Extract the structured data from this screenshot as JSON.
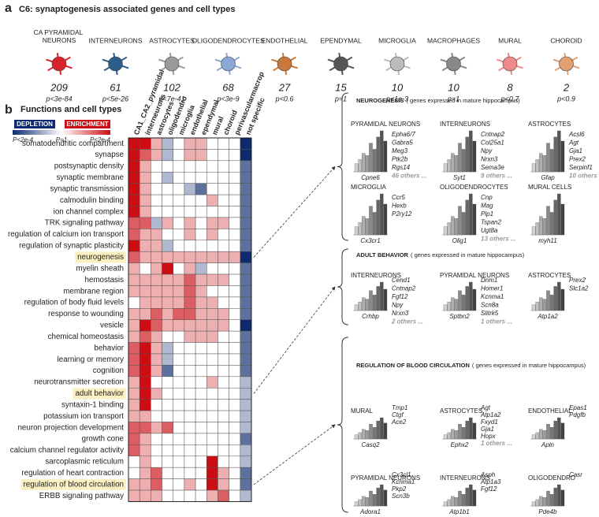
{
  "panel_a": {
    "label": "a",
    "title": "C6: synaptogenesis associated genes and cell types",
    "cell_types": [
      {
        "name": "CA PYRAMIDAL NEURONS",
        "count": 209,
        "p": "p<3e-84",
        "color": "#d9232b"
      },
      {
        "name": "INTERNEURONS",
        "count": 61,
        "p": "p<5e-26",
        "color": "#2b5c8a"
      },
      {
        "name": "ASTROCYTES",
        "count": 102,
        "p": "p<7e-41",
        "color": "#9a9a9a"
      },
      {
        "name": "OLIGODENDROCYTES",
        "count": 68,
        "p": "p<3e-9",
        "color": "#8aa7d6"
      },
      {
        "name": "ENDOTHELIAL",
        "count": 27,
        "p": "p<0.6",
        "color": "#c8783a"
      },
      {
        "name": "EPENDYMAL",
        "count": 15,
        "p": "p=1",
        "color": "#555555"
      },
      {
        "name": "MICROGLIA",
        "count": 10,
        "p": "p<1e-3",
        "color": "#bbbbbb"
      },
      {
        "name": "MACROPHAGES",
        "count": 10,
        "p": "p=1",
        "color": "#888888"
      },
      {
        "name": "MURAL",
        "count": 8,
        "p": "p<0.7",
        "color": "#f08a8a"
      },
      {
        "name": "CHOROID",
        "count": 2,
        "p": "p<0.9",
        "color": "#e0a070"
      }
    ]
  },
  "panel_b": {
    "label": "b",
    "title": "Functions and cell types",
    "legend": {
      "depletion": "DEPLETION",
      "enrichment": "ENRICHMENT",
      "left": "P<2e-4",
      "middle": "P=1",
      "right": "P<2e-4"
    },
    "low_color": "#0d2a6e",
    "mid_color": "#ffffff",
    "high_color": "#cc0e14",
    "scale_range": [
      -3,
      3
    ],
    "columns": [
      "CA1_CA2_pyramidal",
      "interneurons",
      "astrocytes",
      "oligodendro",
      "microglia",
      "endothelial",
      "ependymal",
      "mural",
      "choroid",
      "perivascularmacrop",
      "not specific"
    ],
    "rows": [
      {
        "label": "somatodendritic compartment",
        "scores": [
          3,
          3,
          1,
          -1,
          0,
          1,
          1,
          0,
          0,
          0,
          -3
        ]
      },
      {
        "label": "synapse",
        "scores": [
          3,
          2,
          1,
          -1,
          0,
          1,
          1,
          0,
          0,
          0,
          -3
        ]
      },
      {
        "label": "postsynaptic density",
        "scores": [
          3,
          1,
          0,
          0,
          0,
          0,
          0,
          0,
          0,
          0,
          -2
        ]
      },
      {
        "label": "synaptic membrane",
        "scores": [
          3,
          1,
          0,
          -1,
          0,
          0,
          0,
          0,
          0,
          0,
          -2
        ]
      },
      {
        "label": "synaptic transmission",
        "scores": [
          3,
          1,
          0,
          0,
          0,
          -1,
          -2,
          0,
          0,
          0,
          -2
        ]
      },
      {
        "label": "calmodulin binding",
        "scores": [
          3,
          1,
          0,
          0,
          0,
          0,
          0,
          1,
          0,
          0,
          -2
        ]
      },
      {
        "label": "ion channel complex",
        "scores": [
          3,
          1,
          0,
          0,
          0,
          0,
          0,
          0,
          0,
          0,
          -2
        ]
      },
      {
        "label": "TRK signaling pathway",
        "scores": [
          2,
          2,
          -1,
          1,
          0,
          1,
          0,
          1,
          1,
          0,
          -2
        ]
      },
      {
        "label": "regulation of calcium ion transport",
        "scores": [
          2,
          1,
          1,
          0,
          0,
          1,
          0,
          1,
          0,
          0,
          -2
        ]
      },
      {
        "label": "regulation of synaptic plasticity",
        "scores": [
          3,
          1,
          1,
          -1,
          0,
          0,
          0,
          0,
          0,
          0,
          -2
        ]
      },
      {
        "label": "neurogenesis",
        "scores": [
          2,
          1,
          1,
          1,
          1,
          1,
          1,
          1,
          1,
          1,
          -3
        ],
        "highlight": true
      },
      {
        "label": "myelin sheath",
        "scores": [
          1,
          0,
          1,
          3,
          0,
          1,
          -1,
          0,
          0,
          0,
          -2
        ]
      },
      {
        "label": "hemostasis",
        "scores": [
          1,
          1,
          1,
          1,
          1,
          2,
          1,
          1,
          1,
          0,
          -2
        ]
      },
      {
        "label": "membrane region",
        "scores": [
          1,
          1,
          1,
          1,
          1,
          2,
          1,
          0,
          0,
          0,
          -2
        ]
      },
      {
        "label": "regulation of body fluid levels",
        "scores": [
          0,
          1,
          1,
          1,
          1,
          2,
          1,
          1,
          0,
          0,
          -2
        ]
      },
      {
        "label": "response to wounding",
        "scores": [
          1,
          1,
          2,
          1,
          2,
          2,
          1,
          1,
          1,
          0,
          -2
        ]
      },
      {
        "label": "vesicle",
        "scores": [
          1,
          3,
          2,
          1,
          1,
          1,
          1,
          1,
          1,
          0,
          -3
        ]
      },
      {
        "label": "chemical homeostasis",
        "scores": [
          1,
          2,
          1,
          0,
          0,
          1,
          1,
          1,
          0,
          0,
          -2
        ]
      },
      {
        "label": "behavior",
        "scores": [
          2,
          3,
          1,
          -1,
          0,
          0,
          0,
          0,
          0,
          0,
          -2
        ]
      },
      {
        "label": "learning or memory",
        "scores": [
          2,
          3,
          1,
          -1,
          0,
          0,
          0,
          0,
          0,
          0,
          -2
        ]
      },
      {
        "label": "cognition",
        "scores": [
          2,
          3,
          1,
          -2,
          0,
          0,
          0,
          0,
          0,
          0,
          -2
        ]
      },
      {
        "label": "neurotransmitter secretion",
        "scores": [
          1,
          3,
          0,
          0,
          0,
          0,
          0,
          1,
          0,
          0,
          -1
        ]
      },
      {
        "label": "adult behavior",
        "scores": [
          1,
          3,
          1,
          0,
          0,
          0,
          0,
          0,
          0,
          0,
          -1
        ],
        "highlight": true
      },
      {
        "label": "syntaxin-1 binding",
        "scores": [
          1,
          3,
          0,
          0,
          0,
          0,
          0,
          0,
          0,
          0,
          -1
        ]
      },
      {
        "label": "potassium ion transport",
        "scores": [
          1,
          1,
          0,
          0,
          0,
          0,
          0,
          0,
          0,
          0,
          -1
        ]
      },
      {
        "label": "neuron projection development",
        "scores": [
          2,
          2,
          1,
          2,
          0,
          0,
          0,
          0,
          0,
          0,
          -1
        ]
      },
      {
        "label": "growth cone",
        "scores": [
          2,
          1,
          0,
          0,
          0,
          0,
          0,
          0,
          0,
          0,
          -2
        ]
      },
      {
        "label": "calcium channel regulator activity",
        "scores": [
          2,
          1,
          0,
          0,
          0,
          0,
          0,
          0,
          0,
          0,
          -1
        ]
      },
      {
        "label": "sarcoplasmic reticulum",
        "scores": [
          0,
          1,
          0,
          0,
          0,
          0,
          0,
          3,
          0,
          0,
          -1
        ]
      },
      {
        "label": "regulation of heart contraction",
        "scores": [
          0,
          1,
          2,
          0,
          0,
          0,
          0,
          3,
          1,
          0,
          -2
        ]
      },
      {
        "label": "regulation of blood circulation",
        "scores": [
          1,
          1,
          2,
          0,
          0,
          1,
          0,
          3,
          1,
          0,
          -2
        ],
        "highlight": true
      },
      {
        "label": "ERBB signaling pathway",
        "scores": [
          1,
          1,
          1,
          0,
          0,
          0,
          0,
          1,
          2,
          0,
          -1
        ]
      }
    ]
  },
  "gene_panels": [
    {
      "title": "NEUROGENESIS",
      "note": "( genes expressed in mature hippocampus)",
      "groups": [
        {
          "name": "PYRAMIDAL NEURONS",
          "genes": [
            "Epha6/7",
            "Gabra5",
            "Meg3",
            "Ptk2b",
            "Rgs14"
          ],
          "marker": "Cpne6",
          "others": "46 others ..."
        },
        {
          "name": "INTERNEURONS",
          "genes": [
            "Cntnap2",
            "Col25a1",
            "Npy",
            "Nrxn3",
            "Sema3e"
          ],
          "marker": "Syt1",
          "others": "9 others ..."
        },
        {
          "name": "ASTROCYTES",
          "genes": [
            "Acsl6",
            "Agt",
            "Gja1",
            "Prex2",
            "Serpinf1"
          ],
          "marker": "Gfap",
          "others": "10 others ..."
        },
        {
          "name": "MICROGLIA",
          "genes": [
            "Ccr5",
            "Hexb",
            "P2ry12"
          ],
          "marker": "Cx3cr1"
        },
        {
          "name": "OLIGODENDROCYTES",
          "genes": [
            "Cnp",
            "Mag",
            "Plp1",
            "Tspan2",
            "Ugt8a"
          ],
          "marker": "Olig1",
          "others": "13 others ..."
        },
        {
          "name": "MURAL CELLS",
          "genes": [],
          "marker": "myh11"
        }
      ]
    },
    {
      "title": "ADULT BEHAVIOR",
      "note": "( genes expressed in mature hippocampus)",
      "groups": [
        {
          "name": "INTERNEURONS",
          "genes": [
            "Cend1",
            "Cntnap2",
            "Fgf12",
            "Npy",
            "Nrxn3"
          ],
          "marker": "Crhbp",
          "others": "2 others ..."
        },
        {
          "name": "PYRAMIDAL NEURONS",
          "genes": [
            "Dnm1",
            "Homer1",
            "Kcnma1",
            "Scn8a",
            "Slitrk5"
          ],
          "marker": "Sptbn2",
          "others": "1 others ..."
        },
        {
          "name": "ASTROCYTES",
          "genes": [
            "Prex2",
            "Slc1a2"
          ],
          "marker": "Atp1a2"
        }
      ]
    },
    {
      "title": "REGULATION OF BLOOD CIRCULATION",
      "note": "( genes expressed in mature hippocampus)",
      "groups": [
        {
          "name": "MURAL",
          "genes": [
            "Tmp1",
            "Ctgf",
            "Ace2"
          ],
          "marker": "Casq2"
        },
        {
          "name": "ASTROCYTES",
          "genes": [
            "Agt",
            "Atp1a2",
            "Fxyd1",
            "Gja1",
            "Hopx"
          ],
          "marker": "Ephx2",
          "others": "1 others ..."
        },
        {
          "name": "ENDOTHELIAL",
          "genes": [
            "Epas1",
            "Pdgfb"
          ],
          "marker": "Apln"
        },
        {
          "name": "PYRAMIDAL NEURONS",
          "genes": [
            "Cx3cl1",
            "Kcnma1",
            "Pkp2",
            "Scn3b"
          ],
          "marker": "Adora1"
        },
        {
          "name": "INTERNEURONS",
          "genes": [
            "Asph",
            "Atp1a3",
            "Fgf12"
          ],
          "marker": "Atp1b1"
        },
        {
          "name": "OLIGODENDRO",
          "genes": [
            "Casr"
          ],
          "marker": "Pde4b"
        }
      ]
    }
  ]
}
